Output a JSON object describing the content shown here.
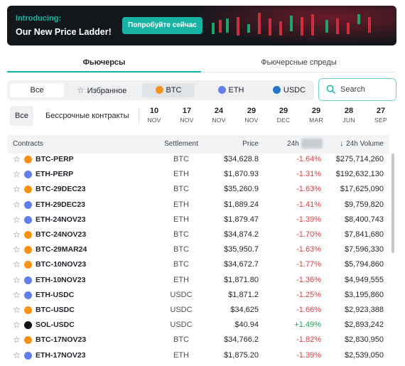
{
  "banner": {
    "intro": "Introducing:",
    "title": "Our New Price Ladder!",
    "button": "Попробуйте сейчас"
  },
  "tabs": [
    {
      "label": "Фьючерсы",
      "active": true
    },
    {
      "label": "Фьючерсные спреды",
      "active": false
    }
  ],
  "filters": {
    "all": "Все",
    "favorites": "Избранное",
    "btc": "BTC",
    "eth": "ETH",
    "usdc": "USDC"
  },
  "search": {
    "placeholder": "Search"
  },
  "expiry": {
    "all": "Все",
    "perpetual": "Бессрочные контракты",
    "dates": [
      {
        "day": "10",
        "month": "NOV"
      },
      {
        "day": "17",
        "month": "NOV"
      },
      {
        "day": "24",
        "month": "NOV"
      },
      {
        "day": "29",
        "month": "NOV"
      },
      {
        "day": "29",
        "month": "DEC"
      },
      {
        "day": "29",
        "month": "MAR"
      },
      {
        "day": "28",
        "month": "JUN"
      },
      {
        "day": "27",
        "month": "SEP"
      }
    ]
  },
  "table": {
    "headers": {
      "contracts": "Contracts",
      "settlement": "Settlement",
      "price": "Price",
      "change": "24h",
      "volume": "24h Volume"
    },
    "rows": [
      {
        "coin": "btc",
        "name": "BTC-PERP",
        "settlement": "BTC",
        "price": "$34,628.8",
        "change": "-1.64%",
        "volume": "$275,714,260"
      },
      {
        "coin": "eth",
        "name": "ETH-PERP",
        "settlement": "ETH",
        "price": "$1,870.93",
        "change": "-1.31%",
        "volume": "$192,632,130"
      },
      {
        "coin": "btc",
        "name": "BTC-29DEC23",
        "settlement": "BTC",
        "price": "$35,260.9",
        "change": "-1.63%",
        "volume": "$17,625,090"
      },
      {
        "coin": "eth",
        "name": "ETH-29DEC23",
        "settlement": "ETH",
        "price": "$1,889.24",
        "change": "-1.41%",
        "volume": "$9,759,820"
      },
      {
        "coin": "eth",
        "name": "ETH-24NOV23",
        "settlement": "ETH",
        "price": "$1,879.47",
        "change": "-1.39%",
        "volume": "$8,400,743"
      },
      {
        "coin": "btc",
        "name": "BTC-24NOV23",
        "settlement": "BTC",
        "price": "$34,874.2",
        "change": "-1.70%",
        "volume": "$7,841,680"
      },
      {
        "coin": "btc",
        "name": "BTC-29MAR24",
        "settlement": "BTC",
        "price": "$35,950.7",
        "change": "-1.63%",
        "volume": "$7,596,330"
      },
      {
        "coin": "btc",
        "name": "BTC-10NOV23",
        "settlement": "BTC",
        "price": "$34,672.7",
        "change": "-1.77%",
        "volume": "$5,794,860"
      },
      {
        "coin": "eth",
        "name": "ETH-10NOV23",
        "settlement": "ETH",
        "price": "$1,871.80",
        "change": "-1.36%",
        "volume": "$4,949,555"
      },
      {
        "coin": "eth",
        "name": "ETH-USDC",
        "settlement": "USDC",
        "price": "$1,871.2",
        "change": "-1.25%",
        "volume": "$3,195,860"
      },
      {
        "coin": "btc",
        "name": "BTC-USDC",
        "settlement": "USDC",
        "price": "$34,625",
        "change": "-1.66%",
        "volume": "$2,923,388"
      },
      {
        "coin": "sol",
        "name": "SOL-USDC",
        "settlement": "USDC",
        "price": "$40.94",
        "change": "+1.49%",
        "volume": "$2,893,242"
      },
      {
        "coin": "btc",
        "name": "BTC-17NOV23",
        "settlement": "BTC",
        "price": "$34,766.2",
        "change": "-1.82%",
        "volume": "$2,830,950"
      },
      {
        "coin": "eth",
        "name": "ETH-17NOV23",
        "settlement": "ETH",
        "price": "$1,875.20",
        "change": "-1.39%",
        "volume": "$2,539,050"
      }
    ]
  },
  "colors": {
    "accent": "#17b3a5",
    "negative": "#e03a3e",
    "positive": "#1ba05a",
    "btc": "#f7931a",
    "eth": "#627eea",
    "usdc": "#2775ca",
    "sol": "#0d1014"
  }
}
